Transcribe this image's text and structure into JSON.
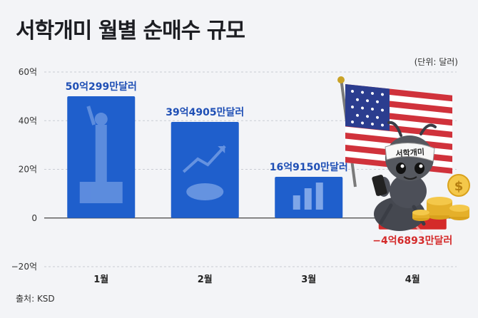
{
  "title": "서학개미 월별 순매수 규모",
  "unit": "(단위: 달러)",
  "source": "출처: KSD",
  "badge": "서학개미",
  "colors": {
    "bar_positive": "#1f5fcc",
    "bar_negative": "#d42a2a",
    "label_positive": "#1f4fb5",
    "label_negative": "#d42a2a"
  },
  "chart_data": {
    "type": "bar",
    "categories": [
      "1월",
      "2월",
      "3월",
      "4월"
    ],
    "values": [
      50.0299,
      39.4905,
      16.915,
      -4.6893
    ],
    "data_labels": [
      "50억299만달러",
      "39억4905만달러",
      "16억9150만달러",
      "−4억6893만달러"
    ],
    "ylim": [
      -20,
      60
    ],
    "yticks": [
      60,
      40,
      20,
      0,
      -20
    ],
    "ytick_labels": [
      "60억",
      "40억",
      "20억",
      "0",
      "−20억"
    ],
    "grid": true
  }
}
